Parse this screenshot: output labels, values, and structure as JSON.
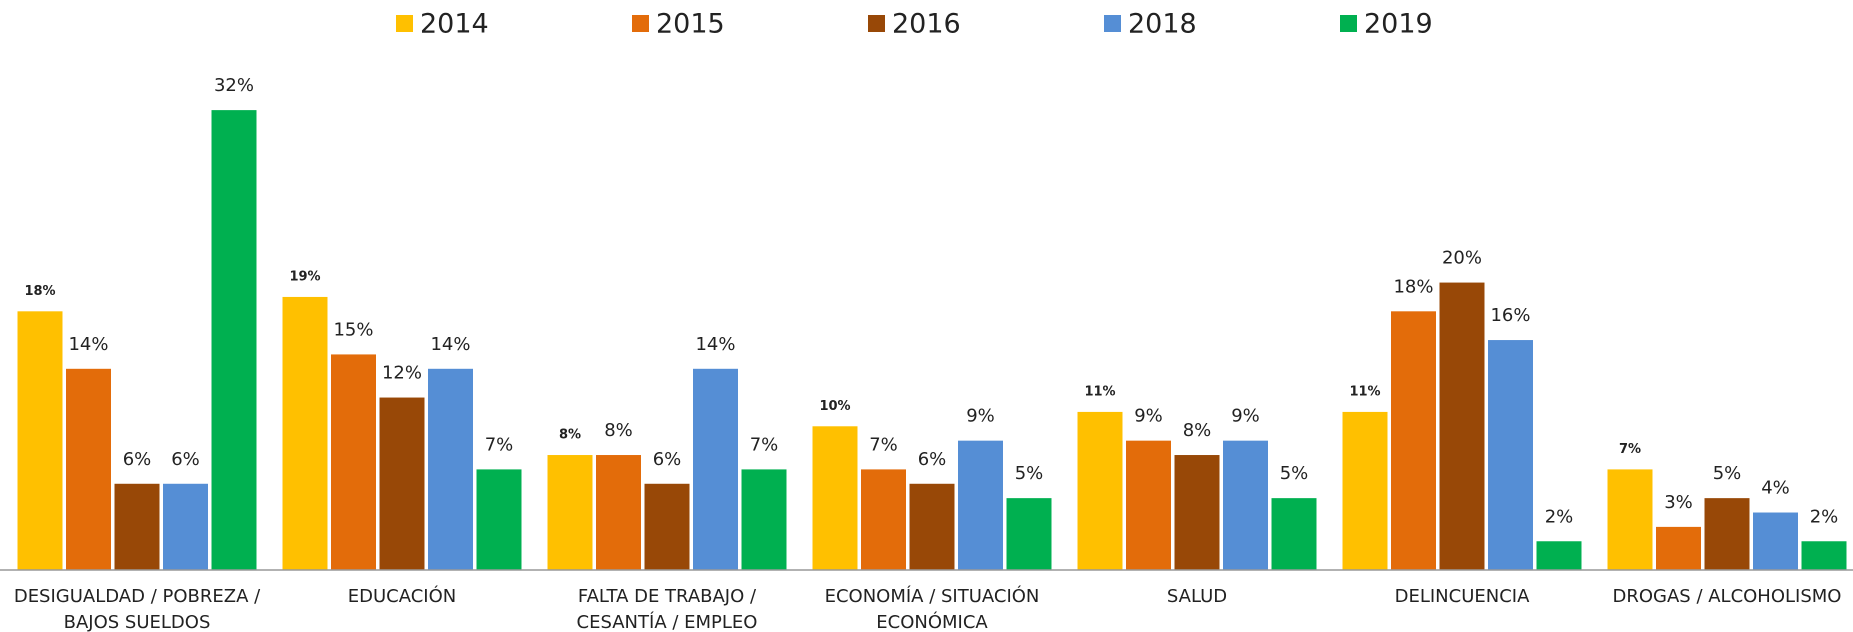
{
  "chart_data": {
    "type": "bar",
    "categories": [
      "DESIGUALDAD / POBREZA / BAJOS SUELDOS",
      "EDUCACIÓN",
      "FALTA DE TRABAJO / CESANTÍA / EMPLEO",
      "ECONOMÍA / SITUACIÓN ECONÓMICA",
      "SALUD",
      "DELINCUENCIA",
      "DROGAS / ALCOHOLISMO"
    ],
    "series": [
      {
        "name": "2014",
        "color": "#FFC000",
        "values": [
          18,
          19,
          8,
          10,
          11,
          11,
          7
        ],
        "value_labels": [
          "18%",
          "19%",
          "8%",
          "10%",
          "11%",
          "11%",
          "7%"
        ]
      },
      {
        "name": "2015",
        "color": "#E36C0A",
        "values": [
          14,
          15,
          8,
          7,
          9,
          18,
          3
        ],
        "value_labels": [
          "14%",
          "15%",
          "8%",
          "7%",
          "9%",
          "18%",
          "3%"
        ]
      },
      {
        "name": "2016",
        "color": "#984807",
        "values": [
          6,
          12,
          6,
          6,
          8,
          20,
          5
        ],
        "value_labels": [
          "6%",
          "12%",
          "6%",
          "6%",
          "8%",
          "20%",
          "5%"
        ]
      },
      {
        "name": "2018",
        "color": "#558ED5",
        "values": [
          6,
          14,
          14,
          9,
          9,
          16,
          4
        ],
        "value_labels": [
          "6%",
          "14%",
          "14%",
          "9%",
          "9%",
          "16%",
          "4%"
        ]
      },
      {
        "name": "2019",
        "color": "#00B050",
        "values": [
          32,
          7,
          7,
          5,
          5,
          2,
          2
        ],
        "value_labels": [
          "32%",
          "7%",
          "7%",
          "5%",
          "5%",
          "2%",
          "2%"
        ]
      }
    ],
    "ylim": [
      0,
      35
    ],
    "legend": "top"
  }
}
